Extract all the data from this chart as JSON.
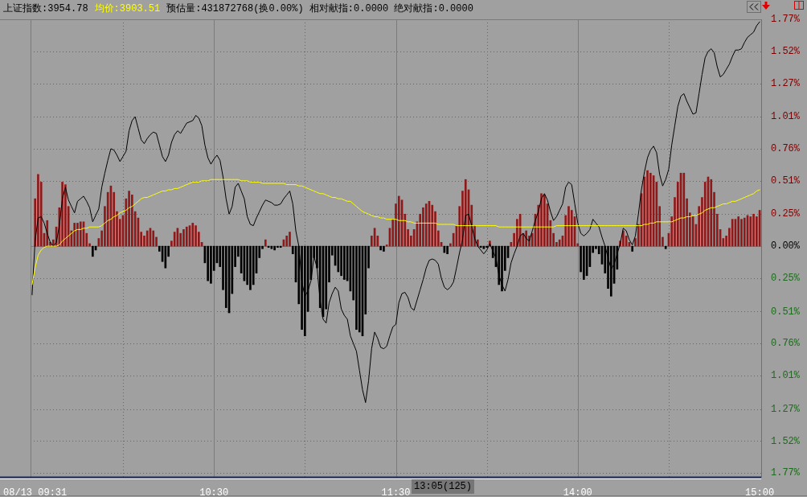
{
  "chart_data": {
    "type": "line",
    "legend": "top left",
    "grid": true,
    "marker": "none",
    "subtitle": "预估量:431872768(换0.00%) 相对献指:0.0000 绝对献指:0.0000",
    "categories": [
      null,
      "08/13 09:31",
      null,
      null,
      null,
      null,
      null,
      null,
      null,
      null,
      null,
      null,
      null,
      null,
      null,
      null,
      null,
      null,
      null,
      null,
      null,
      null,
      null,
      null,
      null,
      null,
      null,
      null,
      null,
      null,
      null,
      null,
      null,
      null,
      null,
      null,
      null,
      null,
      null,
      null,
      null,
      null,
      null,
      null,
      null,
      null,
      null,
      null,
      null,
      null,
      null,
      null,
      null,
      null,
      null,
      null,
      null,
      null,
      null,
      null,
      "10:30",
      null,
      null,
      null,
      null,
      null,
      null,
      null,
      null,
      null,
      null,
      null,
      null,
      null,
      null,
      null,
      null,
      null,
      null,
      null,
      null,
      null,
      null,
      null,
      null,
      null,
      null,
      null,
      null,
      null,
      null,
      null,
      null,
      null,
      null,
      null,
      null,
      null,
      null,
      null,
      null,
      null,
      null,
      null,
      null,
      null,
      null,
      null,
      null,
      null,
      null,
      null,
      null,
      null,
      null,
      null,
      null,
      null,
      null,
      null,
      "11:30",
      null,
      null,
      null,
      null,
      null,
      null,
      null,
      null,
      null,
      null,
      null,
      null,
      null,
      null,
      null,
      null,
      null,
      null,
      null,
      null,
      null,
      null,
      null,
      null,
      null,
      null,
      null,
      null,
      null,
      null,
      null,
      null,
      null,
      null,
      null,
      null,
      null,
      null,
      null,
      null,
      null,
      null,
      null,
      null,
      null,
      null,
      null,
      null,
      null,
      null,
      null,
      null,
      null,
      null,
      null,
      null,
      null,
      null,
      null,
      "14:00",
      null,
      null,
      null,
      null,
      null,
      null,
      null,
      null,
      null,
      null,
      null,
      null,
      null,
      null,
      null,
      null,
      null,
      null,
      null,
      null,
      null,
      null,
      null,
      null,
      null,
      null,
      null,
      null,
      null,
      null,
      null,
      null,
      null,
      null,
      null,
      null,
      null,
      null,
      null,
      null,
      null,
      null,
      null,
      null,
      null,
      null,
      null,
      null,
      null,
      null,
      null,
      null,
      null,
      null,
      null,
      null,
      null,
      null,
      null,
      "15:00"
    ],
    "ylim": [
      -1.8,
      1.77
    ],
    "yticks": [
      {
        "value": 1.77,
        "label": "1.77%"
      },
      {
        "value": 1.52,
        "label": "1.52%"
      },
      {
        "value": 1.27,
        "label": "1.27%"
      },
      {
        "value": 1.01,
        "label": "1.01%"
      },
      {
        "value": 0.76,
        "label": "0.76%"
      },
      {
        "value": 0.51,
        "label": "0.51%"
      },
      {
        "value": 0.25,
        "label": "0.25%"
      },
      {
        "value": 0,
        "label": "0.00%"
      },
      {
        "value": -0.25,
        "label": "0.25%"
      },
      {
        "value": -0.51,
        "label": "0.51%"
      },
      {
        "value": -0.76,
        "label": "0.76%"
      },
      {
        "value": -1.01,
        "label": "1.01%"
      },
      {
        "value": -1.27,
        "label": "1.27%"
      },
      {
        "value": -1.52,
        "label": "1.52%"
      },
      {
        "value": -1.77,
        "label": "1.77%"
      }
    ],
    "series": [
      {
        "type": "bar",
        "color": "#901818",
        "values": [
          null,
          0.37,
          0.56,
          0.5,
          0.1,
          0.2,
          0.03,
          0.05,
          0.15,
          0.3,
          0.5,
          0.48,
          0.31,
          0.12,
          0.18,
          0.18,
          0.19,
          0.19,
          0.1,
          0.02,
          null,
          null,
          0.06,
          0.12,
          0.31,
          0.42,
          0.47,
          0.42,
          0.27,
          0.21,
          0.24,
          0.37,
          0.43,
          0.4,
          0.27,
          0.22,
          0.11,
          0.08,
          0.12,
          0.14,
          0.12,
          0.07,
          null,
          null,
          null,
          null,
          0.04,
          0.11,
          0.14,
          0.1,
          0.13,
          0.15,
          0.16,
          0.18,
          0.16,
          0.11,
          0.03,
          null,
          null,
          null,
          null,
          null,
          null,
          null,
          null,
          null,
          null,
          null,
          null,
          null,
          null,
          null,
          null,
          null,
          null,
          null,
          null,
          0.05,
          null,
          null,
          null,
          null,
          null,
          0.05,
          0.08,
          0.11,
          null,
          null,
          null,
          null,
          null,
          null,
          null,
          null,
          null,
          null,
          null,
          null,
          null,
          null,
          null,
          null,
          null,
          null,
          null,
          null,
          null,
          null,
          null,
          null,
          null,
          null,
          0.08,
          0.14,
          0.08,
          null,
          null,
          0.01,
          0.14,
          0.21,
          0.33,
          0.39,
          0.36,
          0.25,
          0.13,
          0.08,
          0.13,
          0.19,
          0.25,
          0.3,
          0.33,
          0.35,
          0.32,
          0.27,
          0.12,
          0.03,
          null,
          null,
          0.02,
          0.1,
          0.16,
          0.31,
          0.43,
          0.52,
          0.44,
          0.32,
          0.16,
          0.05,
          null,
          null,
          null,
          0.04,
          null,
          null,
          null,
          null,
          null,
          null,
          0.03,
          0.1,
          0.21,
          0.25,
          0.1,
          0.12,
          0.08,
          0.1,
          0.25,
          0.32,
          0.41,
          0.4,
          0.33,
          0.2,
          0.1,
          0.03,
          0.05,
          0.08,
          0.24,
          0.31,
          0.28,
          0.23,
          0.02,
          null,
          null,
          null,
          null,
          null,
          null,
          null,
          null,
          null,
          null,
          null,
          null,
          null,
          0.04,
          0.12,
          0.08,
          0.03,
          null,
          0.06,
          0.17,
          0.41,
          0.54,
          0.59,
          0.57,
          0.55,
          0.5,
          0.31,
          0.07,
          null,
          0.1,
          0.23,
          0.38,
          0.5,
          0.57,
          0.57,
          0.37,
          0.26,
          0.23,
          0.17,
          0.31,
          0.38,
          0.5,
          0.54,
          0.52,
          0.42,
          0.25,
          0.13,
          0.06,
          0.08,
          0.14,
          0.21,
          0.21,
          0.23,
          0.21,
          0.22,
          0.24,
          0.23,
          0.25,
          0.23,
          0.28
        ]
      },
      {
        "type": "bar",
        "color": "#000000",
        "values": [
          null,
          null,
          null,
          null,
          null,
          null,
          null,
          null,
          null,
          null,
          null,
          null,
          null,
          null,
          null,
          null,
          null,
          null,
          null,
          null,
          -0.08,
          -0.03,
          null,
          null,
          null,
          null,
          null,
          null,
          null,
          null,
          null,
          null,
          null,
          null,
          null,
          null,
          null,
          null,
          null,
          null,
          null,
          null,
          -0.04,
          -0.12,
          -0.17,
          -0.08,
          null,
          null,
          null,
          null,
          null,
          null,
          null,
          null,
          null,
          null,
          null,
          -0.13,
          -0.27,
          -0.29,
          -0.19,
          -0.13,
          -0.16,
          -0.34,
          -0.48,
          -0.52,
          -0.37,
          -0.16,
          -0.08,
          -0.21,
          -0.27,
          -0.3,
          -0.34,
          -0.3,
          -0.21,
          -0.09,
          -0.02,
          null,
          -0.01,
          -0.02,
          -0.03,
          -0.01,
          -0.01,
          null,
          null,
          null,
          -0.06,
          -0.28,
          -0.45,
          -0.65,
          -0.7,
          -0.51,
          -0.26,
          -0.09,
          -0.17,
          -0.48,
          -0.55,
          -0.49,
          -0.28,
          -0.07,
          -0.15,
          -0.2,
          -0.23,
          -0.26,
          -0.27,
          -0.35,
          -0.42,
          -0.65,
          -0.67,
          -0.7,
          -0.53,
          -0.17,
          null,
          null,
          null,
          -0.03,
          -0.04,
          null,
          null,
          null,
          null,
          null,
          null,
          null,
          null,
          null,
          null,
          null,
          null,
          null,
          null,
          null,
          null,
          null,
          null,
          null,
          -0.05,
          -0.06,
          null,
          null,
          null,
          null,
          null,
          null,
          null,
          null,
          null,
          null,
          -0.01,
          -0.02,
          -0.01,
          null,
          -0.09,
          -0.16,
          -0.3,
          -0.35,
          -0.19,
          -0.09,
          null,
          null,
          null,
          null,
          null,
          null,
          null,
          null,
          null,
          null,
          null,
          null,
          null,
          null,
          null,
          null,
          null,
          null,
          null,
          null,
          null,
          null,
          null,
          -0.2,
          -0.26,
          -0.23,
          -0.16,
          -0.05,
          -0.02,
          -0.06,
          -0.14,
          -0.21,
          -0.33,
          -0.39,
          -0.29,
          -0.18,
          null,
          null,
          null,
          null,
          -0.04,
          null,
          null,
          null,
          null,
          null,
          null,
          null,
          null,
          null,
          null,
          -0.02,
          null,
          null,
          null,
          null,
          null,
          null,
          null,
          null,
          null,
          null,
          null,
          null,
          null,
          null,
          null,
          null,
          null,
          null,
          null,
          null,
          null,
          null,
          null,
          null,
          null,
          null,
          null,
          null,
          null,
          null,
          null
        ]
      },
      {
        "name": "上证指数:3954.78",
        "color": "#000000",
        "values": [
          -0.38,
          0.04,
          0.22,
          0.23,
          0.18,
          0.1,
          0.03,
          0.0,
          0.03,
          0.16,
          0.37,
          0.46,
          0.36,
          0.31,
          0.26,
          0.35,
          0.37,
          0.39,
          0.35,
          0.3,
          0.19,
          0.24,
          0.29,
          0.46,
          0.57,
          0.67,
          0.76,
          0.75,
          0.71,
          0.66,
          0.7,
          0.74,
          0.9,
          0.98,
          1.01,
          0.92,
          0.83,
          0.8,
          0.84,
          0.87,
          0.89,
          0.88,
          0.79,
          0.7,
          0.66,
          0.71,
          0.81,
          0.87,
          0.9,
          0.88,
          0.92,
          0.96,
          0.97,
          0.98,
          1.02,
          1.0,
          0.94,
          0.79,
          0.69,
          0.64,
          0.68,
          0.71,
          0.67,
          0.54,
          0.37,
          0.25,
          0.31,
          0.46,
          0.49,
          0.43,
          0.37,
          0.23,
          0.17,
          0.16,
          0.22,
          0.27,
          0.32,
          0.36,
          0.35,
          0.34,
          0.32,
          0.32,
          0.33,
          0.37,
          0.4,
          0.43,
          0.33,
          0.12,
          0.0,
          -0.28,
          -0.39,
          -0.35,
          -0.27,
          -0.08,
          -0.17,
          -0.42,
          -0.57,
          -0.6,
          -0.44,
          -0.37,
          -0.32,
          -0.35,
          -0.49,
          -0.54,
          -0.57,
          -0.7,
          -0.76,
          -0.82,
          -0.97,
          -1.12,
          -1.22,
          -1.05,
          -0.8,
          -0.67,
          -0.72,
          -0.79,
          -0.8,
          -0.78,
          -0.7,
          -0.63,
          -0.61,
          -0.44,
          -0.37,
          -0.36,
          -0.4,
          -0.48,
          -0.5,
          -0.42,
          -0.34,
          -0.26,
          -0.17,
          -0.11,
          -0.1,
          -0.11,
          -0.14,
          -0.25,
          -0.32,
          -0.34,
          -0.32,
          -0.28,
          -0.17,
          -0.05,
          0.05,
          0.24,
          0.25,
          0.16,
          0.06,
          0.0,
          -0.03,
          -0.06,
          -0.03,
          0.02,
          -0.04,
          -0.09,
          -0.23,
          -0.3,
          -0.35,
          -0.26,
          -0.13,
          -0.06,
          0.0,
          0.08,
          0.1,
          0.06,
          0.04,
          0.12,
          0.2,
          0.27,
          0.37,
          0.41,
          0.36,
          0.27,
          0.2,
          0.23,
          0.28,
          0.33,
          0.46,
          0.5,
          0.48,
          0.33,
          0.18,
          0.1,
          0.08,
          0.1,
          0.13,
          0.21,
          0.18,
          0.15,
          0.07,
          0.0,
          -0.09,
          -0.18,
          -0.14,
          -0.06,
          0.02,
          0.14,
          0.12,
          0.05,
          0.01,
          0.08,
          0.25,
          0.44,
          0.58,
          0.69,
          0.75,
          0.78,
          0.73,
          0.56,
          0.47,
          0.52,
          0.6,
          0.79,
          0.94,
          1.09,
          1.17,
          1.19,
          1.13,
          1.08,
          1.03,
          1.04,
          1.19,
          1.34,
          1.47,
          1.52,
          1.54,
          1.51,
          1.4,
          1.32,
          1.34,
          1.38,
          1.42,
          1.48,
          1.53,
          1.53,
          1.54,
          1.59,
          1.63,
          1.65,
          1.67,
          1.72,
          1.75
        ]
      },
      {
        "name": "均价:3903.51",
        "color": "#ffff00",
        "values": [
          -0.3,
          -0.17,
          -0.07,
          -0.03,
          -0.01,
          0.0,
          0.0,
          0.0,
          0.0,
          0.01,
          0.04,
          0.06,
          0.08,
          0.1,
          0.12,
          0.13,
          0.13,
          0.14,
          0.14,
          0.15,
          0.15,
          0.15,
          0.15,
          0.16,
          0.18,
          0.2,
          0.21,
          0.23,
          0.24,
          0.26,
          0.27,
          0.28,
          0.3,
          0.31,
          0.33,
          0.35,
          0.37,
          0.38,
          0.38,
          0.39,
          0.4,
          0.41,
          0.42,
          0.43,
          0.43,
          0.44,
          0.44,
          0.45,
          0.45,
          0.46,
          0.47,
          0.48,
          0.49,
          0.5,
          0.5,
          0.5,
          0.51,
          0.51,
          0.51,
          0.52,
          0.52,
          0.52,
          0.52,
          0.52,
          0.52,
          0.52,
          0.52,
          0.52,
          0.52,
          0.51,
          0.51,
          0.51,
          0.5,
          0.5,
          0.5,
          0.5,
          0.49,
          0.49,
          0.49,
          0.49,
          0.49,
          0.49,
          0.49,
          0.49,
          0.48,
          0.48,
          0.48,
          0.48,
          0.47,
          0.47,
          0.46,
          0.45,
          0.44,
          0.43,
          0.42,
          0.41,
          0.41,
          0.4,
          0.39,
          0.38,
          0.38,
          0.37,
          0.37,
          0.36,
          0.35,
          0.35,
          0.33,
          0.31,
          0.29,
          0.27,
          0.26,
          0.25,
          0.24,
          0.23,
          0.23,
          0.22,
          0.22,
          0.21,
          0.21,
          0.21,
          0.21,
          0.2,
          0.2,
          0.2,
          0.19,
          0.19,
          0.18,
          0.18,
          0.18,
          0.18,
          0.18,
          0.18,
          0.18,
          0.18,
          0.17,
          0.17,
          0.17,
          0.17,
          0.17,
          0.17,
          0.16,
          0.16,
          0.16,
          0.16,
          0.16,
          0.16,
          0.16,
          0.16,
          0.16,
          0.16,
          0.16,
          0.16,
          0.16,
          0.16,
          0.15,
          0.15,
          0.15,
          0.15,
          0.15,
          0.15,
          0.15,
          0.15,
          0.15,
          0.15,
          0.15,
          0.15,
          0.15,
          0.15,
          0.15,
          0.15,
          0.15,
          0.15,
          0.15,
          0.16,
          0.16,
          0.16,
          0.16,
          0.16,
          0.16,
          0.16,
          0.16,
          0.16,
          0.16,
          0.16,
          0.16,
          0.16,
          0.16,
          0.16,
          0.16,
          0.16,
          0.16,
          0.16,
          0.16,
          0.16,
          0.16,
          0.16,
          0.16,
          0.16,
          0.16,
          0.16,
          0.16,
          0.16,
          0.17,
          0.17,
          0.18,
          0.18,
          0.19,
          0.19,
          0.19,
          0.19,
          0.19,
          0.19,
          0.2,
          0.21,
          0.22,
          0.22,
          0.23,
          0.23,
          0.24,
          0.24,
          0.25,
          0.26,
          0.28,
          0.29,
          0.3,
          0.3,
          0.31,
          0.32,
          0.33,
          0.33,
          0.34,
          0.35,
          0.35,
          0.36,
          0.37,
          0.38,
          0.39,
          0.4,
          0.41,
          0.43,
          0.44
        ]
      }
    ],
    "annotations": [
      "13:05(125)"
    ]
  }
}
